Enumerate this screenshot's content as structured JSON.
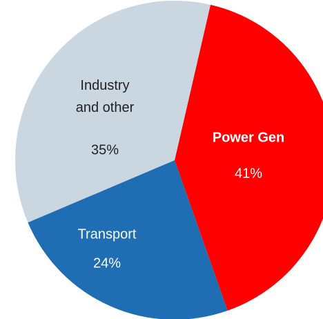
{
  "chart_data": {
    "type": "pie",
    "categories": [
      "Power Gen",
      "Transport",
      "Industry and other"
    ],
    "values": [
      41,
      24,
      35
    ],
    "value_labels": [
      "41%",
      "24%",
      "35%"
    ],
    "colors": [
      "#ff0000",
      "#1f6db3",
      "#cbd7e0"
    ]
  }
}
